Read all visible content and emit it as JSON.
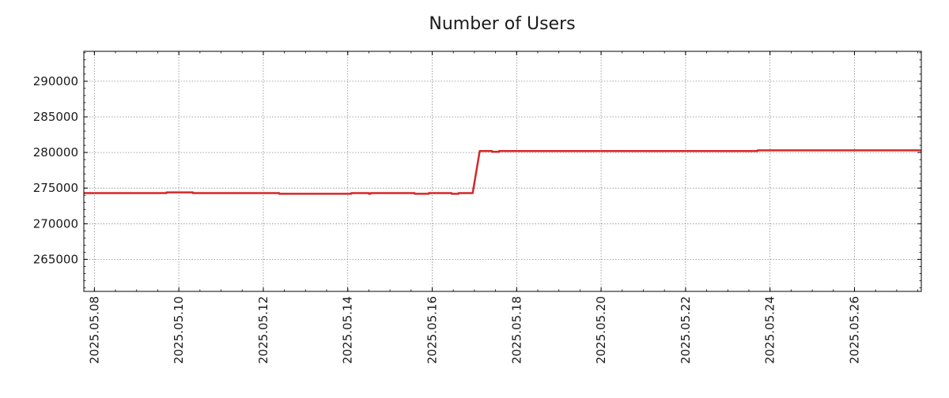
{
  "chart_data": {
    "type": "line",
    "title": "Number of Users",
    "xlabel": "",
    "ylabel": "",
    "x_range": [
      "2025-05-07T18:00",
      "2025-05-27T14:00"
    ],
    "ylim": [
      260500,
      294200
    ],
    "y_ticks": [
      265000,
      270000,
      275000,
      280000,
      285000,
      290000
    ],
    "x_ticks": [
      "2025-05-08",
      "2025-05-10",
      "2025-05-12",
      "2025-05-14",
      "2025-05-16",
      "2025-05-18",
      "2025-05-20",
      "2025-05-22",
      "2025-05-24",
      "2025-05-26"
    ],
    "grid": true,
    "legend": "none",
    "series": [
      {
        "color": "#d62728",
        "points": [
          [
            "2025-05-07T18:00",
            274300
          ],
          [
            "2025-05-09T17:00",
            274300
          ],
          [
            "2025-05-09T17:00",
            274400
          ],
          [
            "2025-05-10T08:00",
            274400
          ],
          [
            "2025-05-10T08:00",
            274300
          ],
          [
            "2025-05-12T09:00",
            274300
          ],
          [
            "2025-05-12T09:00",
            274200
          ],
          [
            "2025-05-14T02:00",
            274200
          ],
          [
            "2025-05-14T02:00",
            274300
          ],
          [
            "2025-05-14T12:00",
            274300
          ],
          [
            "2025-05-14T12:00",
            274200
          ],
          [
            "2025-05-14T13:00",
            274200
          ],
          [
            "2025-05-14T13:00",
            274300
          ],
          [
            "2025-05-15T14:00",
            274300
          ],
          [
            "2025-05-15T14:00",
            274200
          ],
          [
            "2025-05-15T22:00",
            274200
          ],
          [
            "2025-05-15T22:00",
            274300
          ],
          [
            "2025-05-16T11:00",
            274300
          ],
          [
            "2025-05-16T11:00",
            274200
          ],
          [
            "2025-05-16T15:00",
            274200
          ],
          [
            "2025-05-16T15:00",
            274300
          ],
          [
            "2025-05-16T23:00",
            274300
          ],
          [
            "2025-05-17T03:00",
            280200
          ],
          [
            "2025-05-17T10:00",
            280200
          ],
          [
            "2025-05-17T10:00",
            280100
          ],
          [
            "2025-05-17T14:00",
            280100
          ],
          [
            "2025-05-17T14:00",
            280200
          ],
          [
            "2025-05-23T17:00",
            280200
          ],
          [
            "2025-05-23T17:00",
            280300
          ],
          [
            "2025-05-27T14:00",
            280300
          ]
        ]
      }
    ]
  }
}
